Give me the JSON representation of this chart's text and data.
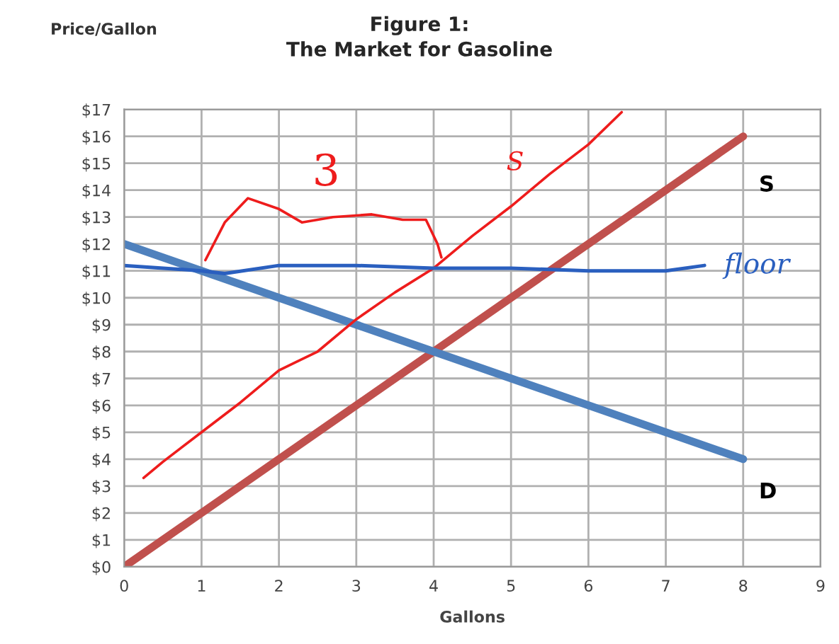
{
  "chart_data": {
    "type": "line",
    "title": "Figure 1:\nThe Market for Gasoline",
    "xlabel": "Gallons",
    "ylabel": "Price/Gallon",
    "xlim": [
      0,
      9
    ],
    "xticks": [
      0,
      1,
      2,
      3,
      4,
      5,
      6,
      7,
      8,
      9
    ],
    "ylim": [
      0,
      17
    ],
    "yticks": [
      {
        "value": 0,
        "label": "$0"
      },
      {
        "value": 1,
        "label": "$1"
      },
      {
        "value": 2,
        "label": "$2"
      },
      {
        "value": 3,
        "label": "$3"
      },
      {
        "value": 4,
        "label": "$4"
      },
      {
        "value": 5,
        "label": "$5"
      },
      {
        "value": 6,
        "label": "$6"
      },
      {
        "value": 7,
        "label": "$7"
      },
      {
        "value": 8,
        "label": "$8"
      },
      {
        "value": 9,
        "label": "$9"
      },
      {
        "value": 10,
        "label": "$10"
      },
      {
        "value": 11,
        "label": "$11"
      },
      {
        "value": 12,
        "label": "$12"
      },
      {
        "value": 13,
        "label": "$13"
      },
      {
        "value": 14,
        "label": "$14"
      },
      {
        "value": 15,
        "label": "$15"
      },
      {
        "value": 16,
        "label": "$16"
      },
      {
        "value": 17,
        "label": "$17"
      }
    ],
    "grid": true,
    "legend": false,
    "marker": "none",
    "series": [
      {
        "name": "S",
        "color": "#c0504d",
        "x": [
          0,
          8
        ],
        "values": [
          0,
          16
        ]
      },
      {
        "name": "D",
        "color": "#4f81bd",
        "x": [
          0,
          8
        ],
        "values": [
          12,
          4
        ]
      },
      {
        "name": "S",
        "color": "#ee1c1c",
        "x": [
          0.25,
          0.5,
          1,
          1.5,
          2,
          2.5,
          3,
          3.5,
          4,
          4.5,
          5,
          5.5,
          6,
          6.43
        ],
        "values": [
          3.3,
          3.9,
          5,
          6.1,
          7.3,
          8,
          9.2,
          10.2,
          11.1,
          12.3,
          13.4,
          14.6,
          15.7,
          16.9
        ]
      },
      {
        "name": "floor",
        "color": "#2a5fbf",
        "x": [
          0,
          1,
          1.3,
          2,
          3,
          4,
          5,
          6,
          7,
          7.5
        ],
        "values": [
          11.2,
          11,
          10.9,
          11.2,
          11.2,
          11.1,
          11.1,
          11,
          11,
          11.2
        ]
      },
      {
        "color": "#ee1c1c",
        "x": [
          1.05,
          1.3,
          1.6,
          2,
          2.3,
          2.7,
          3.2,
          3.6,
          3.9,
          4.05,
          4.1
        ],
        "values": [
          11.4,
          12.8,
          13.7,
          13.3,
          12.8,
          13.0,
          13.1,
          12.9,
          12.9,
          12.0,
          11.5
        ]
      }
    ],
    "annotations": [
      "3"
    ]
  }
}
